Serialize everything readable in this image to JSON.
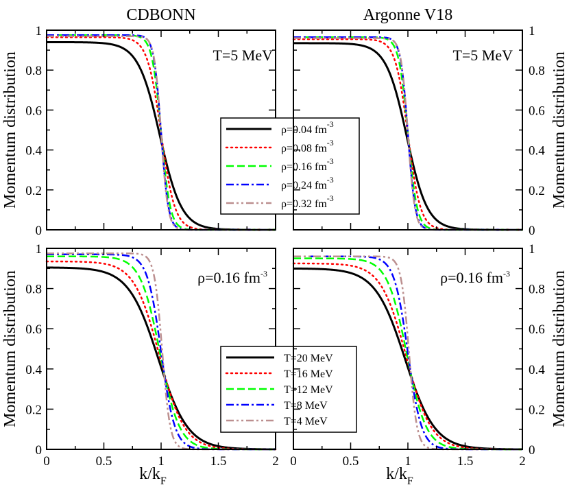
{
  "chart_data": {
    "type": "line",
    "figure_columns": [
      "CDBONN",
      "Argonne V18"
    ],
    "xlabel": {
      "main": "k/k",
      "sub": "F"
    },
    "ylabel": "Momentum distribution",
    "xlim": [
      0,
      2
    ],
    "ylim": [
      0,
      1
    ],
    "x_ticks": [
      "0",
      "0.5",
      "1",
      "1.5",
      "2"
    ],
    "y_ticks": [
      "0",
      "0.2",
      "0.4",
      "0.6",
      "0.8",
      "1"
    ],
    "grid": false,
    "panels": [
      {
        "id": "top-left",
        "column_title": "CDBONN",
        "annotation": {
          "text": "T=5 MeV",
          "sup": ""
        },
        "legend": {
          "placement": "center-right",
          "entries": [
            {
              "label": "ρ=0.04 fm",
              "sup": "-3"
            },
            {
              "label": "ρ=0.08 fm",
              "sup": "-3"
            },
            {
              "label": "ρ=0.16 fm",
              "sup": "-3"
            },
            {
              "label": "ρ=0.24 fm",
              "sup": "-3"
            },
            {
              "label": "ρ=0.32 fm",
              "sup": "-3"
            }
          ]
        },
        "series": [
          {
            "name": "ρ=0.04 fm-3",
            "color": "#000000",
            "dash": "solid",
            "n0": 0.94,
            "x_half": 0.99,
            "width": 0.095
          },
          {
            "name": "ρ=0.08 fm-3",
            "color": "#ff0000",
            "dash": "dotted",
            "n0": 0.965,
            "x_half": 1.0,
            "width": 0.06
          },
          {
            "name": "ρ=0.16 fm-3",
            "color": "#00ff00",
            "dash": "dashed",
            "n0": 0.975,
            "x_half": 1.0,
            "width": 0.04
          },
          {
            "name": "ρ=0.24 fm-3",
            "color": "#0000ff",
            "dash": "dashdot",
            "n0": 0.975,
            "x_half": 1.0,
            "width": 0.032
          },
          {
            "name": "ρ=0.32 fm-3",
            "color": "#bc8f8f",
            "dash": "dashdotdot",
            "n0": 0.97,
            "x_half": 1.0,
            "width": 0.03
          }
        ]
      },
      {
        "id": "top-right",
        "column_title": "Argonne V18",
        "annotation": {
          "text": "T=5 MeV",
          "sup": ""
        },
        "legend": null,
        "series": [
          {
            "name": "ρ=0.04 fm-3",
            "color": "#000000",
            "dash": "solid",
            "n0": 0.935,
            "x_half": 0.99,
            "width": 0.09
          },
          {
            "name": "ρ=0.08 fm-3",
            "color": "#ff0000",
            "dash": "dotted",
            "n0": 0.955,
            "x_half": 1.0,
            "width": 0.055
          },
          {
            "name": "ρ=0.16 fm-3",
            "color": "#00ff00",
            "dash": "dashed",
            "n0": 0.965,
            "x_half": 1.0,
            "width": 0.04
          },
          {
            "name": "ρ=0.24 fm-3",
            "color": "#0000ff",
            "dash": "dashdot",
            "n0": 0.965,
            "x_half": 1.0,
            "width": 0.032
          },
          {
            "name": "ρ=0.32 fm-3",
            "color": "#bc8f8f",
            "dash": "dashdotdot",
            "n0": 0.96,
            "x_half": 1.0,
            "width": 0.03
          }
        ]
      },
      {
        "id": "bottom-left",
        "column_title": "",
        "annotation": {
          "text": "ρ=0.16 fm",
          "sup": "-3"
        },
        "legend": {
          "placement": "bottom-right",
          "entries": [
            {
              "label": "T=20 MeV",
              "sup": ""
            },
            {
              "label": "T=16 MeV",
              "sup": ""
            },
            {
              "label": "T=12 MeV",
              "sup": ""
            },
            {
              "label": "T=8 MeV",
              "sup": ""
            },
            {
              "label": "T=4 MeV",
              "sup": ""
            }
          ]
        },
        "series": [
          {
            "name": "T=20 MeV",
            "color": "#000000",
            "dash": "solid",
            "n0": 0.905,
            "x_half": 0.975,
            "width": 0.13
          },
          {
            "name": "T=16 MeV",
            "color": "#ff0000",
            "dash": "dotted",
            "n0": 0.935,
            "x_half": 0.985,
            "width": 0.11
          },
          {
            "name": "T=12 MeV",
            "color": "#00ff00",
            "dash": "dashed",
            "n0": 0.96,
            "x_half": 0.99,
            "width": 0.085
          },
          {
            "name": "T=8 MeV",
            "color": "#0000ff",
            "dash": "dashdot",
            "n0": 0.97,
            "x_half": 1.0,
            "width": 0.06
          },
          {
            "name": "T=4 MeV",
            "color": "#bc8f8f",
            "dash": "dashdotdot",
            "n0": 0.975,
            "x_half": 1.01,
            "width": 0.035
          }
        ]
      },
      {
        "id": "bottom-right",
        "column_title": "",
        "annotation": {
          "text": "ρ=0.16 fm",
          "sup": "-3"
        },
        "legend": null,
        "series": [
          {
            "name": "T=20 MeV",
            "color": "#000000",
            "dash": "solid",
            "n0": 0.9,
            "x_half": 0.975,
            "width": 0.13
          },
          {
            "name": "T=16 MeV",
            "color": "#ff0000",
            "dash": "dotted",
            "n0": 0.925,
            "x_half": 0.985,
            "width": 0.11
          },
          {
            "name": "T=12 MeV",
            "color": "#00ff00",
            "dash": "dashed",
            "n0": 0.95,
            "x_half": 0.99,
            "width": 0.085
          },
          {
            "name": "T=8 MeV",
            "color": "#0000ff",
            "dash": "dashdot",
            "n0": 0.96,
            "x_half": 1.0,
            "width": 0.06
          },
          {
            "name": "T=4 MeV",
            "color": "#bc8f8f",
            "dash": "dashdotdot",
            "n0": 0.96,
            "x_half": 1.01,
            "width": 0.035
          }
        ]
      }
    ]
  }
}
